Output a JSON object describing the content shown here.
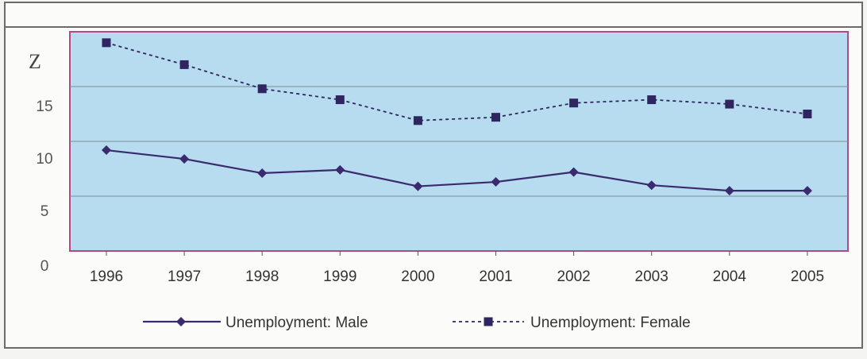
{
  "chart_data": {
    "type": "line",
    "categories": [
      "1996",
      "1997",
      "1998",
      "1999",
      "2000",
      "2001",
      "2002",
      "2003",
      "2004",
      "2005"
    ],
    "y_tick_labels": [
      "0",
      "5",
      "10",
      "15",
      "Z"
    ],
    "ylim": [
      0,
      20
    ],
    "grid": true,
    "legend_position": "bottom",
    "series": [
      {
        "name": "Unemployment: Male",
        "values": [
          9.2,
          8.4,
          7.1,
          7.4,
          5.9,
          6.3,
          7.2,
          6.0,
          5.5,
          5.5
        ],
        "color": "#3a2a6e",
        "line_style": "solid",
        "marker": "diamond"
      },
      {
        "name": "Unemployment: Female",
        "values": [
          19.0,
          17.0,
          14.8,
          13.8,
          11.9,
          12.2,
          13.5,
          13.8,
          13.4,
          12.5
        ],
        "color": "#2f2560",
        "line_style": "dashed",
        "marker": "square"
      }
    ]
  },
  "colors": {
    "plot_background": "#b8dcef",
    "plot_border": "#b04a86",
    "gridline": "#7a8c96"
  }
}
